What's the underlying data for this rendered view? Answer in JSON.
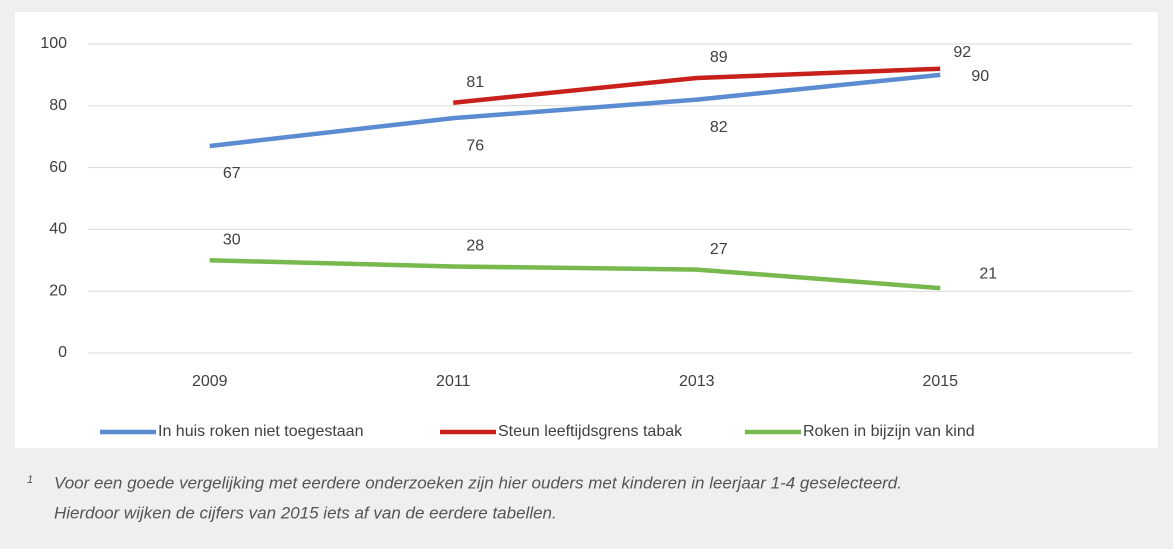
{
  "chart_data": {
    "type": "line",
    "categories": [
      "2009",
      "2011",
      "2013",
      "2015"
    ],
    "series": [
      {
        "name": "In huis roken niet toegestaan",
        "color": "#5b8bd0",
        "values": [
          67,
          76,
          82,
          90
        ]
      },
      {
        "name": "Steun leeftijdsgrens tabak",
        "color": "#c8211c",
        "values": [
          null,
          81,
          89,
          92
        ]
      },
      {
        "name": "Roken in bijzijn van kind",
        "color": "#78b94e",
        "values": [
          30,
          28,
          27,
          21
        ]
      }
    ],
    "ylim": [
      0,
      100
    ],
    "yticks": [
      0,
      20,
      40,
      60,
      80,
      100
    ],
    "grid": true,
    "legend": "bottom"
  },
  "footnote": {
    "marker": "1",
    "lines": [
      "Voor een goede vergelijking met eerdere onderzoeken zijn hier ouders met kinderen in leerjaar 1-4 geselecteerd.",
      "Hierdoor wijken de cijfers van 2015 iets af van de eerdere tabellen."
    ]
  }
}
